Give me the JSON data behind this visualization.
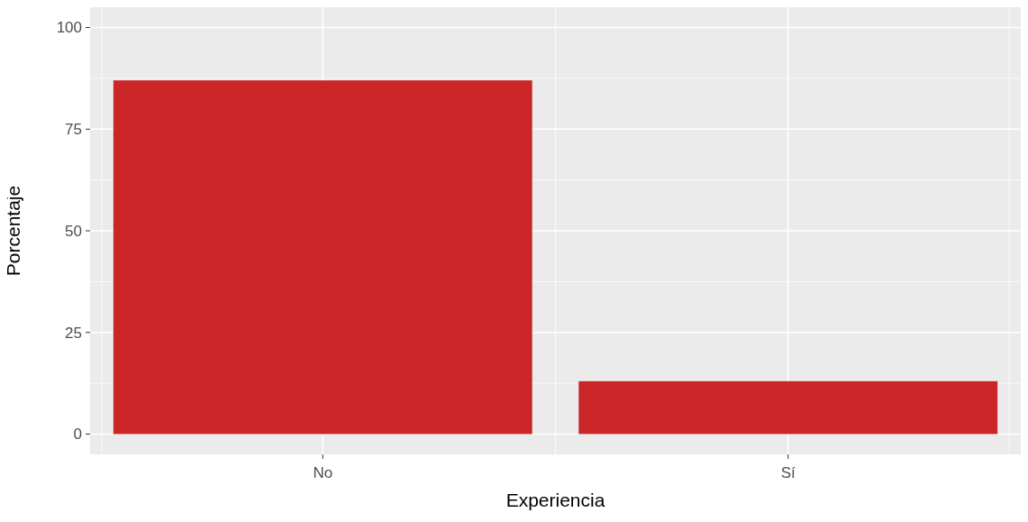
{
  "chart_data": {
    "type": "bar",
    "xlabel": "Experiencia",
    "ylabel": "Porcentaje",
    "categories": [
      "No",
      "Sí"
    ],
    "values": [
      87,
      13
    ],
    "color": "#cb2627",
    "ylim": [
      -5,
      105
    ],
    "yticks": [
      0,
      25,
      50,
      75,
      100
    ],
    "grid": true
  }
}
